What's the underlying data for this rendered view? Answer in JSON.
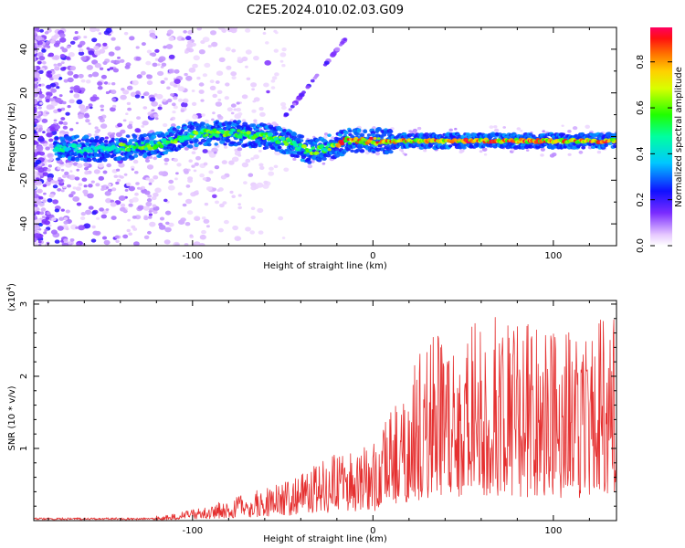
{
  "title": "C2E5.2024.010.02.03.G09",
  "chart_data": [
    {
      "type": "heatmap",
      "xlabel": "Height of straight line (km)",
      "ylabel": "Frequency (Hz)",
      "xlim": [
        -188,
        135
      ],
      "ylim": [
        -50,
        50
      ],
      "xticks": [
        -100,
        0,
        100
      ],
      "xtick_labels": [
        "-100",
        "0",
        "100"
      ],
      "yticks": [
        -40,
        -20,
        0,
        20,
        40
      ],
      "ytick_labels": [
        "-40",
        "-20",
        "0",
        "20",
        "40"
      ],
      "ridge_frequency": {
        "x": [
          -175,
          -150,
          -140,
          -120,
          -100,
          -80,
          -60,
          -45,
          -35,
          -20,
          -15,
          0,
          50,
          100,
          135
        ],
        "y": [
          -5,
          -6,
          -5,
          -4,
          1,
          2,
          0,
          -3,
          -7,
          -4,
          -2,
          -2,
          -2,
          -2,
          -2
        ]
      },
      "colorbar": {
        "label": "Normalized spectral amplitude",
        "range": [
          0,
          0.95
        ],
        "ticks": [
          0.0,
          0.2,
          0.4,
          0.6,
          0.8
        ],
        "tick_labels": [
          "0.0",
          "0.2",
          "0.4",
          "0.6",
          "0.8"
        ]
      }
    },
    {
      "type": "line",
      "xlabel": "Height of straight line (km)",
      "ylabel": "SNR (10 * v/v)",
      "scale_label": "(x10",
      "scale_exponent": "4",
      "scale_close": ")",
      "xlim": [
        -188,
        135
      ],
      "ylim": [
        0,
        3.05
      ],
      "xticks": [
        -100,
        0,
        100
      ],
      "xtick_labels": [
        "-100",
        "0",
        "100"
      ],
      "yticks": [
        1,
        2,
        3
      ],
      "ytick_labels": [
        "1",
        "2",
        "3"
      ],
      "color": "#e53030",
      "envelope": {
        "x": [
          -188,
          -130,
          -110,
          -90,
          -70,
          -50,
          -40,
          -30,
          -20,
          -10,
          0,
          10,
          20,
          30,
          50,
          70,
          90,
          110,
          135
        ],
        "y": [
          0.02,
          0.04,
          0.1,
          0.22,
          0.38,
          0.55,
          0.65,
          0.85,
          0.95,
          1.0,
          1.1,
          1.5,
          2.1,
          2.5,
          2.8,
          2.9,
          2.7,
          2.6,
          2.9
        ]
      }
    }
  ]
}
